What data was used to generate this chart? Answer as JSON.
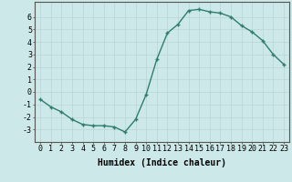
{
  "x": [
    0,
    1,
    2,
    3,
    4,
    5,
    6,
    7,
    8,
    9,
    10,
    11,
    12,
    13,
    14,
    15,
    16,
    17,
    18,
    19,
    20,
    21,
    22,
    23
  ],
  "y": [
    -0.6,
    -1.2,
    -1.6,
    -2.2,
    -2.6,
    -2.7,
    -2.7,
    -2.8,
    -3.2,
    -2.2,
    -0.2,
    2.6,
    4.7,
    5.4,
    6.5,
    6.6,
    6.4,
    6.3,
    6.0,
    5.3,
    4.8,
    4.1,
    3.0,
    2.2
  ],
  "line_color": "#2e7d6e",
  "marker": "+",
  "bg_color": "#cce8e8",
  "grid_color": "#b8d4d4",
  "xlabel": "Humidex (Indice chaleur)",
  "xlim": [
    -0.5,
    23.5
  ],
  "ylim": [
    -4.0,
    7.2
  ],
  "yticks": [
    -3,
    -2,
    -1,
    0,
    1,
    2,
    3,
    4,
    5,
    6
  ],
  "xticks": [
    0,
    1,
    2,
    3,
    4,
    5,
    6,
    7,
    8,
    9,
    10,
    11,
    12,
    13,
    14,
    15,
    16,
    17,
    18,
    19,
    20,
    21,
    22,
    23
  ],
  "xlabel_fontsize": 7,
  "tick_fontsize": 6,
  "line_width": 1.0,
  "marker_size": 3,
  "marker_ew": 1.0
}
